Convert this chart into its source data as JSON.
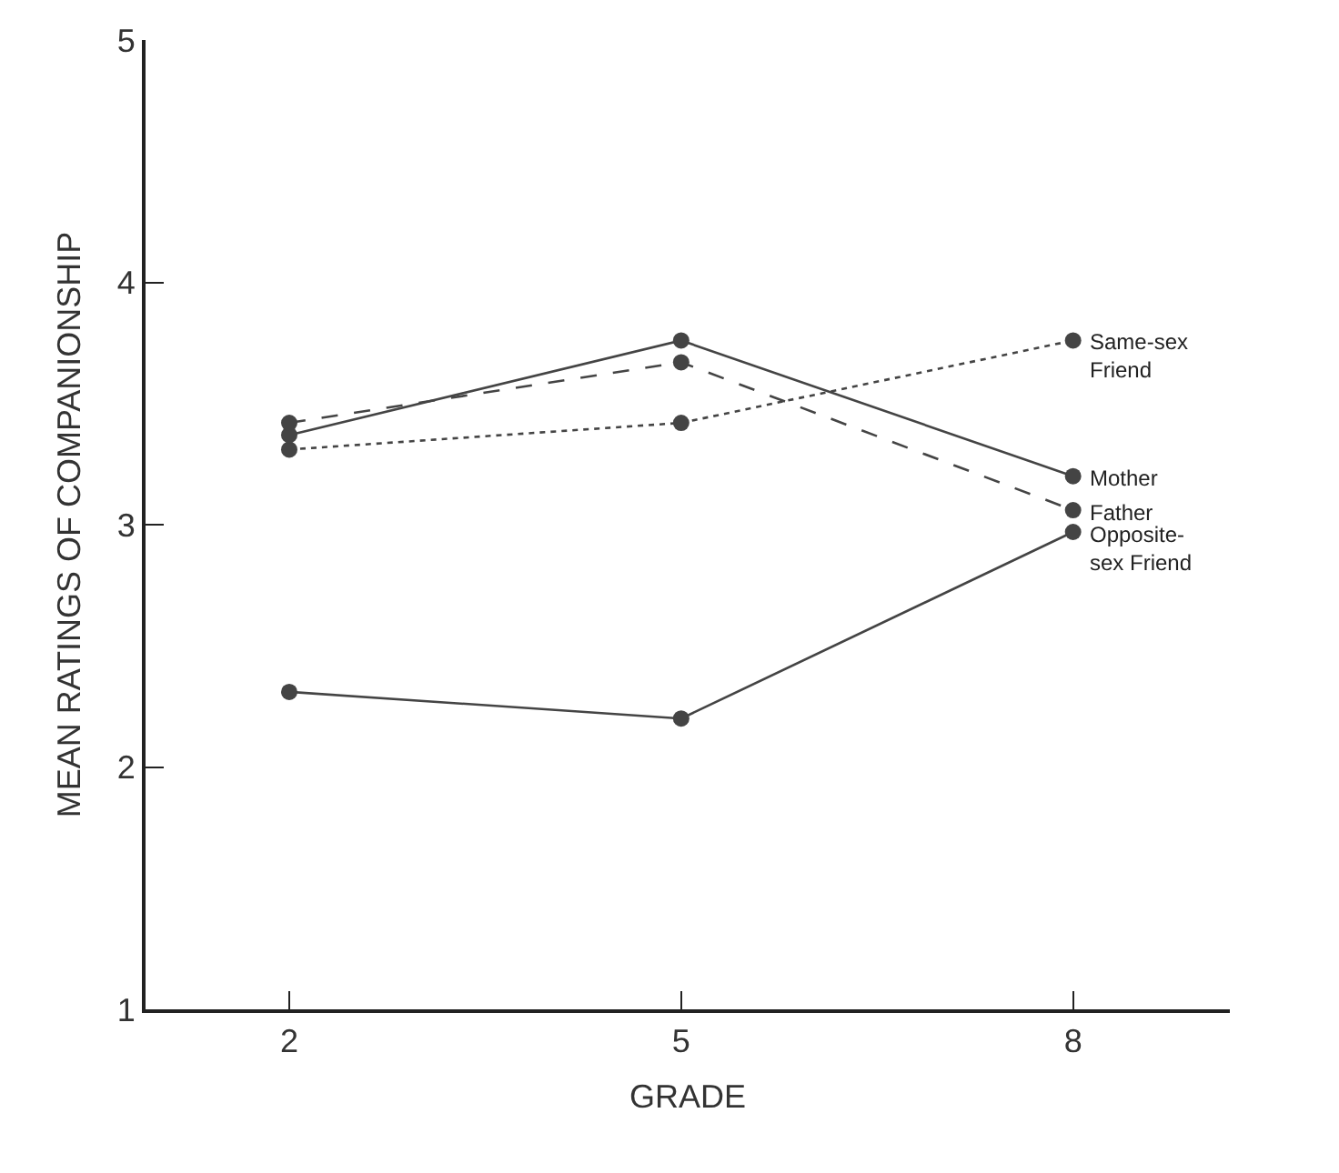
{
  "chart_data": {
    "type": "line",
    "xlabel": "GRADE",
    "ylabel": "MEAN RATINGS OF COMPANIONSHIP",
    "x": [
      2,
      5,
      8
    ],
    "xlim": [
      0.9,
      9.2
    ],
    "xticks": [
      2,
      5,
      8
    ],
    "ylim": [
      1,
      5
    ],
    "yticks": [
      1,
      2,
      3,
      4,
      5
    ],
    "legend": false,
    "marker": "circle",
    "series": [
      {
        "name": "Same-sex\nFriend",
        "color": "#444444",
        "line_style": "dotted",
        "values": [
          3.31,
          3.42,
          3.76
        ]
      },
      {
        "name": "Mother",
        "color": "#444444",
        "line_style": "solid",
        "values": [
          3.37,
          3.76,
          3.2
        ]
      },
      {
        "name": "Father",
        "color": "#444444",
        "line_style": "dashed",
        "values": [
          3.42,
          3.67,
          3.06
        ]
      },
      {
        "name": "Opposite-\nsex Friend",
        "color": "#444444",
        "line_style": "solid",
        "values": [
          2.31,
          2.2,
          2.97
        ]
      }
    ]
  }
}
